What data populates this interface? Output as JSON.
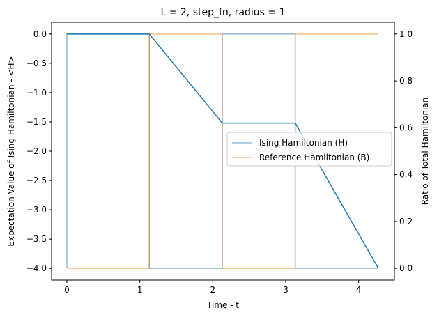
{
  "chart_data": {
    "type": "line",
    "title": "L = 2, step_fn, radius = 1",
    "xlabel": "Time - t",
    "ylabel_left": "Expectation Value of Ising Hamiltonian - <H>",
    "ylabel_right": "Ratio of Total Hamiltonian",
    "xlim": [
      -0.21,
      4.49
    ],
    "ylim_left": [
      -4.2,
      0.2
    ],
    "ylim_right": [
      -0.05,
      1.05
    ],
    "x_ticks": [
      0,
      1,
      2,
      3,
      4
    ],
    "y_left_ticks": [
      0.0,
      -0.5,
      -1.0,
      -1.5,
      -2.0,
      -2.5,
      -3.0,
      -3.5,
      -4.0
    ],
    "y_right_ticks": [
      0.0,
      0.2,
      0.4,
      0.6,
      0.8,
      1.0
    ],
    "legend_position": "center-right",
    "series": [
      {
        "name": "Ising Hamiltonian (H)",
        "axis": "right",
        "color": "#1f77b4",
        "opacity": 0.5,
        "x": [
          0,
          0,
          1.13,
          1.13,
          2.13,
          2.13,
          3.13,
          3.13,
          4.27
        ],
        "y": [
          0,
          1,
          1,
          0,
          0,
          1,
          1,
          0,
          0
        ]
      },
      {
        "name": "Reference Hamiltonian (B)",
        "axis": "right",
        "color": "#ff7f0e",
        "opacity": 0.5,
        "x": [
          0,
          1.13,
          1.13,
          2.13,
          2.13,
          3.13,
          3.13,
          4.27
        ],
        "y": [
          0,
          0,
          1,
          1,
          0,
          0,
          1,
          1
        ]
      },
      {
        "axis": "left",
        "color": "#1f77b4",
        "opacity": 1.0,
        "x": [
          0,
          1.13,
          2.13,
          3.13,
          4.27
        ],
        "y": [
          0,
          0,
          -1.52,
          -1.52,
          -4.0
        ]
      }
    ]
  }
}
